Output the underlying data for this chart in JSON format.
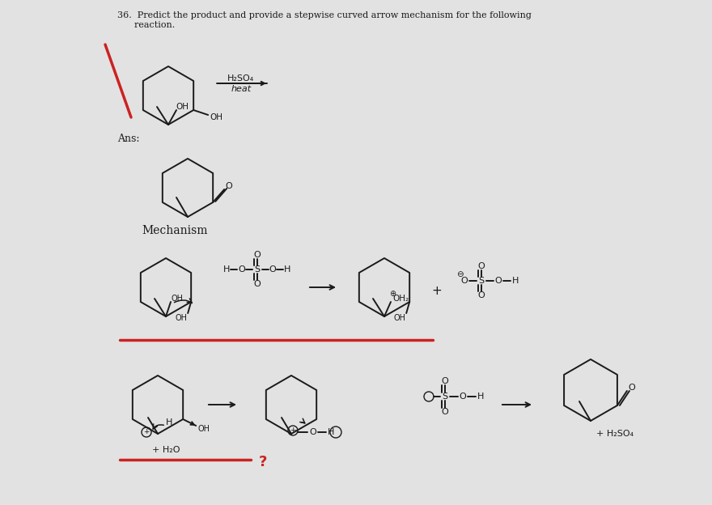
{
  "bg_color": "#c8c8c8",
  "page_color": "#e0e0e0",
  "text_color": "#1a1a1a",
  "red_color": "#cc2222",
  "line_color": "#1a1a1a",
  "title_line1": "36.  Predict the product and provide a stepwise curved arrow mechanism for the following",
  "title_line2": "      reaction.",
  "ans_label": "Ans:",
  "mechanism_label": "Mechanism",
  "heat_label": "heat",
  "plus_h2o": "+ H₂O",
  "plus_h2so4": "+ H₂SO₄"
}
